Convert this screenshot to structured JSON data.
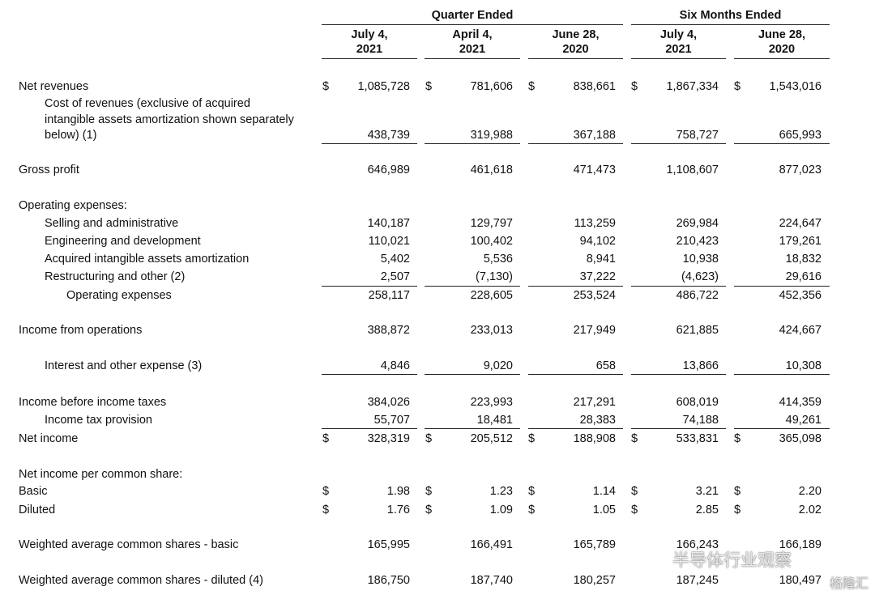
{
  "header": {
    "groups": [
      "Quarter Ended",
      "Six Months Ended"
    ],
    "columns": [
      [
        "July 4,",
        "2021"
      ],
      [
        "April 4,",
        "2021"
      ],
      [
        "June 28,",
        "2020"
      ],
      [
        "July 4,",
        "2021"
      ],
      [
        "June 28,",
        "2020"
      ]
    ]
  },
  "table": {
    "rows": [
      {
        "label": "Net revenues",
        "currency": "$",
        "values": [
          "1,085,728",
          "781,606",
          "838,661",
          "1,867,334",
          "1,543,016"
        ]
      },
      {
        "label": [
          "Cost of revenues (exclusive of acquired",
          "intangible assets amortization shown separately",
          "below) (1)"
        ],
        "values": [
          "438,739",
          "319,988",
          "367,188",
          "758,727",
          "665,993"
        ]
      },
      {
        "label": "Gross profit",
        "values": [
          "646,989",
          "461,618",
          "471,473",
          "1,108,607",
          "877,023"
        ]
      },
      {
        "label": "Operating expenses:"
      },
      {
        "label": "Selling and administrative",
        "values": [
          "140,187",
          "129,797",
          "113,259",
          "269,984",
          "224,647"
        ]
      },
      {
        "label": "Engineering and development",
        "values": [
          "110,021",
          "100,402",
          "94,102",
          "210,423",
          "179,261"
        ]
      },
      {
        "label": "Acquired intangible assets amortization",
        "values": [
          "5,402",
          "5,536",
          "8,941",
          "10,938",
          "18,832"
        ]
      },
      {
        "label": "Restructuring and other (2)",
        "values": [
          "2,507",
          "(7,130)",
          "37,222",
          "(4,623)",
          "29,616"
        ]
      },
      {
        "label": "Operating expenses",
        "values": [
          "258,117",
          "228,605",
          "253,524",
          "486,722",
          "452,356"
        ]
      },
      {
        "label": "Income from operations",
        "values": [
          "388,872",
          "233,013",
          "217,949",
          "621,885",
          "424,667"
        ]
      },
      {
        "label": "Interest and other expense (3)",
        "values": [
          "4,846",
          "9,020",
          "658",
          "13,866",
          "10,308"
        ]
      },
      {
        "label": "Income before income taxes",
        "values": [
          "384,026",
          "223,993",
          "217,291",
          "608,019",
          "414,359"
        ]
      },
      {
        "label": "Income tax provision",
        "values": [
          "55,707",
          "18,481",
          "28,383",
          "74,188",
          "49,261"
        ]
      },
      {
        "label": "Net income",
        "currency": "$",
        "values": [
          "328,319",
          "205,512",
          "188,908",
          "533,831",
          "365,098"
        ]
      },
      {
        "label": "Net income per common share:"
      },
      {
        "label": "Basic",
        "currency": "$",
        "values": [
          "1.98",
          "1.23",
          "1.14",
          "3.21",
          "2.20"
        ]
      },
      {
        "label": "Diluted",
        "currency": "$",
        "values": [
          "1.76",
          "1.09",
          "1.05",
          "2.85",
          "2.02"
        ]
      },
      {
        "label": "Weighted average common shares - basic",
        "values": [
          "165,995",
          "166,491",
          "165,789",
          "166,243",
          "166,189"
        ]
      },
      {
        "label": "Weighted average common shares - diluted (4)",
        "values": [
          "186,750",
          "187,740",
          "180,257",
          "187,245",
          "180,497"
        ]
      }
    ]
  },
  "watermark": {
    "source": "半导体行业观察",
    "brand": "格隆汇"
  }
}
